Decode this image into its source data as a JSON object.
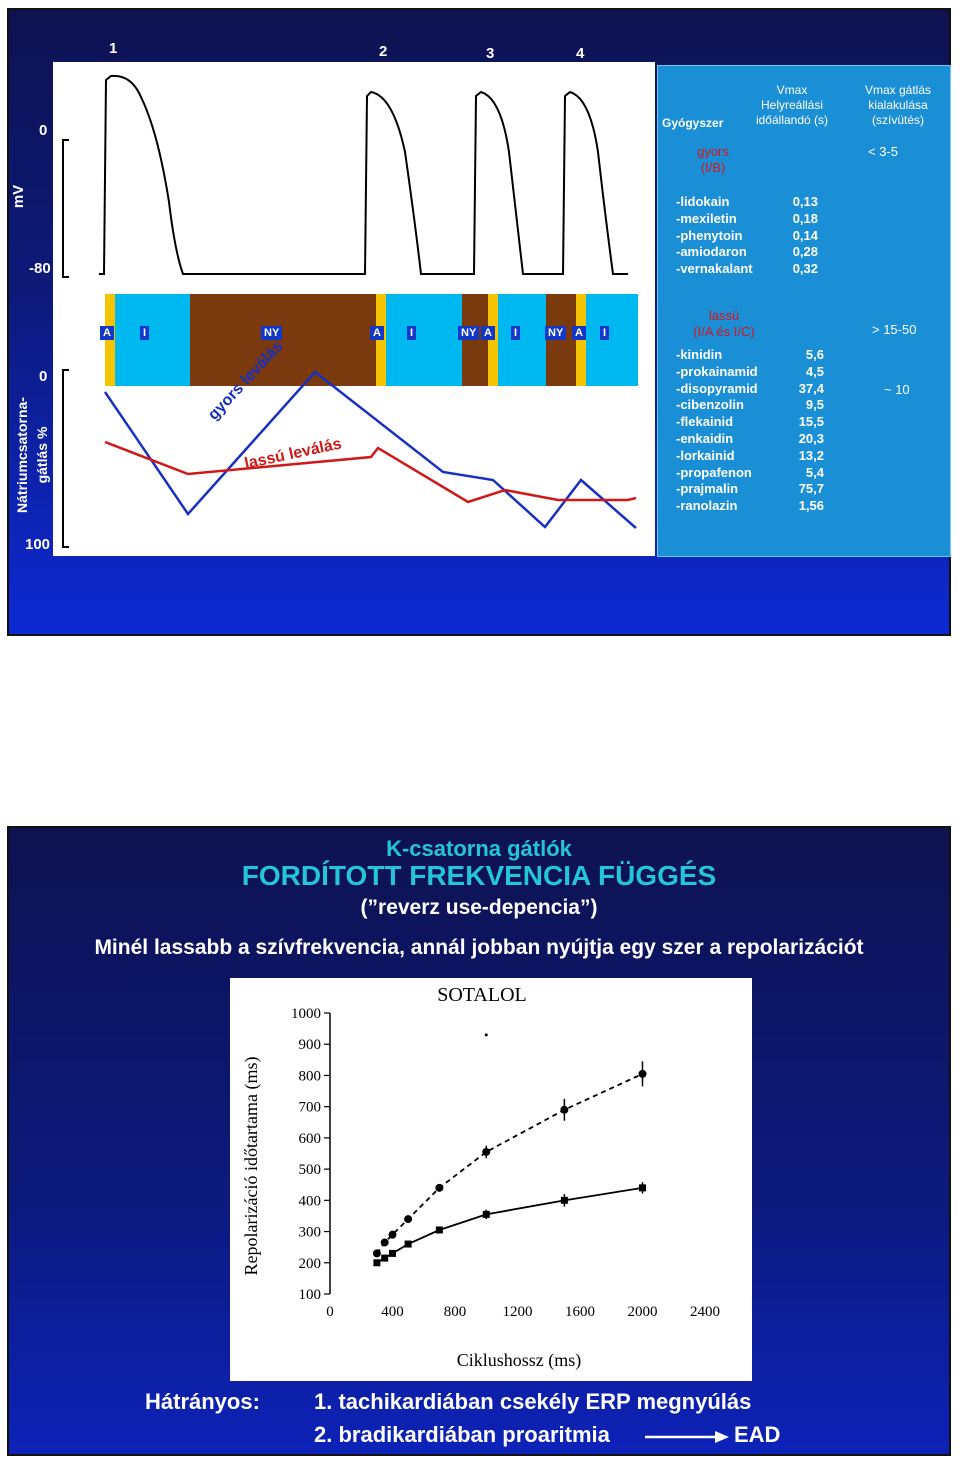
{
  "slide1": {
    "beat_labels": [
      "1",
      "2",
      "3",
      "4"
    ],
    "mv_axis": {
      "label": "mV",
      "top": "0",
      "bottom": "-80"
    },
    "block_axis": {
      "label_line1": "Nátriumcsatorna-",
      "label_line2": "gátlás %",
      "top": "0",
      "bottom": "100"
    },
    "channel_states": [
      "A",
      "I",
      "NY",
      "A",
      "I",
      "NY",
      "A",
      "I",
      "NY",
      "A",
      "I"
    ],
    "curve_labels": {
      "fast": "gyors leválás",
      "slow": "lassú leválás"
    },
    "table": {
      "header": {
        "drug": "Gyógyszer",
        "tau_line1": "Vmax",
        "tau_line2": "Helyreállási",
        "tau_line3": "időállandó (s)",
        "block_line1": "Vmax gátlás",
        "block_line2": "kialakulása",
        "block_line3": "(szívütés)"
      },
      "fast_group": {
        "label_line1": "gyors",
        "label_line2": "(I/B)",
        "block": "< 3-5"
      },
      "fast_drugs": [
        {
          "name": "-lidokain",
          "tau": "0,13"
        },
        {
          "name": "-mexiletin",
          "tau": "0,18"
        },
        {
          "name": "-phenytoin",
          "tau": "0,14"
        },
        {
          "name": "-amiodaron",
          "tau": "0,28"
        },
        {
          "name": "-vernakalant",
          "tau": "0,32"
        }
      ],
      "slow_group": {
        "label_line1": "lassú",
        "label_line2": "(I/A és I/C)",
        "block": "> 15-50",
        "block2": "~ 10"
      },
      "slow_drugs": [
        {
          "name": "-kinidin",
          "tau": "5,6"
        },
        {
          "name": "-prokainamid",
          "tau": "4,5"
        },
        {
          "name": "-disopyramid",
          "tau": "37,4"
        },
        {
          "name": "-cibenzolin",
          "tau": "9,5"
        },
        {
          "name": "-flekainid",
          "tau": "15,5"
        },
        {
          "name": "-enkaidin",
          "tau": "20,3"
        },
        {
          "name": "-lorkainid",
          "tau": "13,2"
        },
        {
          "name": "-propafenon",
          "tau": "5,4"
        },
        {
          "name": "-prajmalin",
          "tau": "75,7"
        },
        {
          "name": "-ranolazin",
          "tau": "1,56"
        }
      ]
    }
  },
  "slide2": {
    "title": "K-csatorna gátlók",
    "subtitle": "FORDÍTOTT FREKVENCIA FÜGGÉS",
    "subtitle2": "(”reverz use-depencia”)",
    "statement": "Minél lassabb a szívfrekvencia, annál jobban nyújtja egy szer a repolarizációt",
    "drawback_label": "Hátrányos:",
    "drawback1": "1. tachikardiában csekély ERP megnyúlás",
    "drawback2": "2. bradikardiában proaritmia",
    "drawback2_result": "EAD"
  },
  "chart_data": {
    "type": "line",
    "title": "SOTALOL",
    "xlabel": "Ciklushossz (ms)",
    "ylabel": "Repolarizáció időtartama (ms)",
    "xlim": [
      0,
      2400
    ],
    "ylim": [
      100,
      1000
    ],
    "x_ticks": [
      "0",
      "400",
      "800",
      "1200",
      "1600",
      "2000",
      "2400"
    ],
    "y_ticks": [
      "100",
      "200",
      "300",
      "400",
      "500",
      "600",
      "700",
      "800",
      "900",
      "1000"
    ],
    "series": [
      {
        "style": "dashed",
        "marker": "circle",
        "x": [
          300,
          350,
          400,
          500,
          700,
          1000,
          1500,
          2000
        ],
        "y": [
          230,
          265,
          290,
          340,
          440,
          555,
          690,
          805
        ],
        "err": [
          8,
          8,
          8,
          10,
          10,
          20,
          35,
          40
        ]
      },
      {
        "style": "solid",
        "marker": "square",
        "x": [
          300,
          350,
          400,
          500,
          700,
          1000,
          1500,
          2000
        ],
        "y": [
          200,
          215,
          230,
          260,
          305,
          355,
          400,
          440
        ],
        "err": [
          5,
          5,
          5,
          6,
          8,
          15,
          20,
          18
        ]
      }
    ]
  }
}
